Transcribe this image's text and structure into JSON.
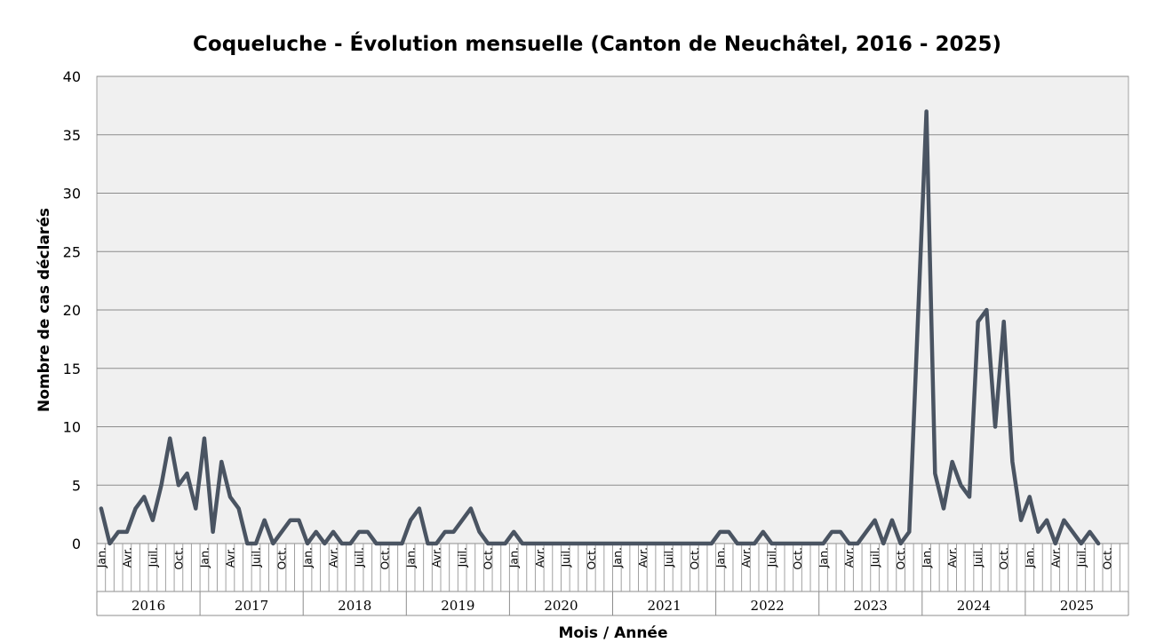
{
  "chart_data": {
    "type": "line",
    "title": "Coqueluche - Évolution mensuelle (Canton de Neuchâtel, 2016 - 2025)",
    "xlabel": "Mois / Année",
    "ylabel": "Nombre de cas déclarés",
    "ylim": [
      0,
      40
    ],
    "yticks": [
      0,
      5,
      10,
      15,
      20,
      25,
      30,
      35,
      40
    ],
    "years": [
      "2016",
      "2017",
      "2018",
      "2019",
      "2020",
      "2021",
      "2022",
      "2023",
      "2024",
      "2025"
    ],
    "month_labels": [
      "Jan.",
      "Avr.",
      "Juil.",
      "Oct."
    ],
    "grid": true,
    "legend": "none",
    "series_color": "#4a5462",
    "plot_background": "#f0f0f0",
    "series": [
      {
        "values": [
          3,
          0,
          1,
          1,
          3,
          4,
          2,
          5,
          9,
          5,
          6,
          3,
          9,
          1,
          7,
          4,
          3,
          0,
          0,
          2,
          0,
          1,
          2,
          2,
          0,
          1,
          0,
          1,
          0,
          0,
          1,
          1,
          0,
          0,
          0,
          0,
          2,
          3,
          0,
          0,
          1,
          1,
          2,
          3,
          1,
          0,
          0,
          0,
          1,
          0,
          0,
          0,
          0,
          0,
          0,
          0,
          0,
          0,
          0,
          0,
          0,
          0,
          0,
          0,
          0,
          0,
          0,
          0,
          0,
          0,
          0,
          0,
          1,
          1,
          0,
          0,
          0,
          1,
          0,
          0,
          0,
          0,
          0,
          0,
          0,
          1,
          1,
          0,
          0,
          1,
          2,
          0,
          2,
          0,
          1,
          19,
          37,
          6,
          3,
          7,
          5,
          4,
          19,
          20,
          10,
          19,
          7,
          2,
          4,
          1,
          2,
          0,
          2,
          1,
          0,
          1,
          0
        ]
      }
    ]
  }
}
